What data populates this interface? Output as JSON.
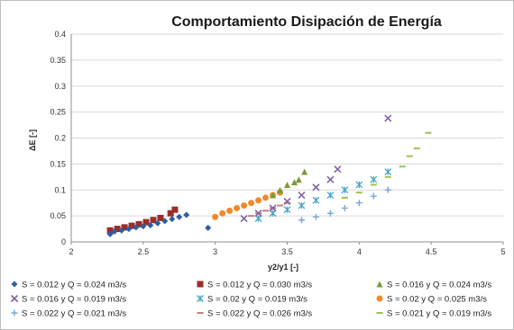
{
  "chart_data": {
    "type": "scatter",
    "title": "Comportamiento Disipación de Energía",
    "xlabel": "y2/y1 [-]",
    "ylabel": "ΔE [-]",
    "xlim": [
      2,
      5
    ],
    "ylim": [
      0,
      0.4
    ],
    "xticks": [
      "2",
      "2.5",
      "3",
      "3.5",
      "4",
      "4.5",
      "5"
    ],
    "yticks": [
      "0",
      "0.05",
      "0.1",
      "0.15",
      "0.2",
      "0.25",
      "0.3",
      "0.35",
      "0.4"
    ],
    "grid": "horizontal",
    "legend_position": "bottom",
    "series": [
      {
        "name": "S = 0.012 y Q = 0.024 m3/s",
        "color": "#2e5fa1",
        "marker": "diamond",
        "x": [
          2.27,
          2.3,
          2.35,
          2.4,
          2.45,
          2.5,
          2.55,
          2.6,
          2.65,
          2.7,
          2.75,
          2.8,
          2.95
        ],
        "y": [
          0.015,
          0.02,
          0.022,
          0.025,
          0.028,
          0.03,
          0.032,
          0.036,
          0.04,
          0.044,
          0.048,
          0.052,
          0.027
        ]
      },
      {
        "name": "S = 0.012 y Q = 0.030 m3/s",
        "color": "#9b2d2a",
        "marker": "square",
        "x": [
          2.27,
          2.32,
          2.37,
          2.42,
          2.47,
          2.52,
          2.57,
          2.62,
          2.69,
          2.72
        ],
        "y": [
          0.022,
          0.025,
          0.028,
          0.031,
          0.034,
          0.038,
          0.042,
          0.046,
          0.055,
          0.062
        ]
      },
      {
        "name": "S = 0.016 y Q = 0.024 m3/s",
        "color": "#7c9a3a",
        "marker": "triangle",
        "x": [
          3.4,
          3.45,
          3.5,
          3.55,
          3.58,
          3.62
        ],
        "y": [
          0.09,
          0.1,
          0.11,
          0.115,
          0.12,
          0.135
        ]
      },
      {
        "name": "S = 0.016 y Q = 0.019 m3/s",
        "color": "#8063a6",
        "marker": "x",
        "x": [
          3.2,
          3.3,
          3.4,
          3.5,
          3.6,
          3.7,
          3.8,
          3.85,
          4.2
        ],
        "y": [
          0.045,
          0.055,
          0.065,
          0.078,
          0.09,
          0.105,
          0.12,
          0.14,
          0.238
        ]
      },
      {
        "name": "S = 0.02 y Q = 0.019 m3/s",
        "color": "#45a5c9",
        "marker": "star",
        "x": [
          3.3,
          3.4,
          3.5,
          3.6,
          3.7,
          3.8,
          3.9,
          4.0,
          4.1,
          4.2
        ],
        "y": [
          0.045,
          0.055,
          0.062,
          0.07,
          0.08,
          0.09,
          0.1,
          0.11,
          0.12,
          0.135
        ]
      },
      {
        "name": "S = 0.02 y Q = 0.025 m3/s",
        "color": "#f08a2b",
        "marker": "circle",
        "x": [
          3.0,
          3.05,
          3.1,
          3.15,
          3.2,
          3.25,
          3.3,
          3.35,
          3.4,
          3.45
        ],
        "y": [
          0.048,
          0.055,
          0.06,
          0.065,
          0.07,
          0.075,
          0.08,
          0.085,
          0.09,
          0.095
        ]
      },
      {
        "name": "S = 0.022 y Q = 0.021 m3/s",
        "color": "#7aa7d9",
        "marker": "plus",
        "x": [
          3.6,
          3.7,
          3.8,
          3.9,
          4.0,
          4.1,
          4.2
        ],
        "y": [
          0.042,
          0.048,
          0.055,
          0.065,
          0.075,
          0.088,
          0.1
        ]
      },
      {
        "name": "S = 0.022 y Q = 0.026 m3/s",
        "color": "#c87f7c",
        "marker": "dash",
        "x": [
          3.25,
          3.3,
          3.35,
          3.4,
          3.45,
          3.5
        ],
        "y": [
          0.05,
          0.055,
          0.06,
          0.065,
          0.07,
          0.075
        ]
      },
      {
        "name": "S = 0.021 y Q = 0.019 m3/s",
        "color": "#9cc34e",
        "marker": "dash",
        "x": [
          3.9,
          4.0,
          4.1,
          4.2,
          4.3,
          4.35,
          4.4,
          4.48
        ],
        "y": [
          0.085,
          0.095,
          0.11,
          0.125,
          0.145,
          0.165,
          0.18,
          0.21
        ]
      }
    ]
  }
}
